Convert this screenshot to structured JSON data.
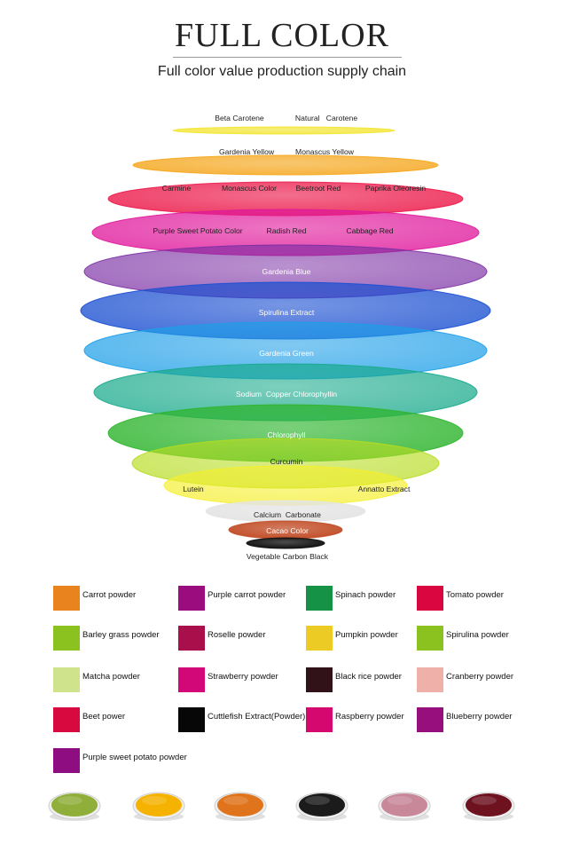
{
  "header": {
    "title": "FULL COLOR",
    "subtitle": "Full color value production supply chain"
  },
  "globe": {
    "bands": [
      {
        "name": "yellow-top",
        "color": "#f3e530",
        "labels": [
          "Beta Carotene",
          "Natural   Carotene"
        ]
      },
      {
        "name": "orange",
        "color": "#f5a71e",
        "labels": [
          "Gardenia Yellow",
          "Monascus Yellow"
        ]
      },
      {
        "name": "red",
        "color": "#ec1b4c",
        "labels": [
          "Carmine",
          "Monascus Color",
          "Beetroot Red",
          "Paprika Oleoresin"
        ]
      },
      {
        "name": "magenta",
        "color": "#e0189b",
        "labels": [
          "Purple Sweet Potato Color",
          "Radish Red",
          "Cabbage Red"
        ]
      },
      {
        "name": "purple",
        "color": "#7a2ea3",
        "labels": [
          "Gardenia Blue"
        ]
      },
      {
        "name": "blue",
        "color": "#1a4fd1",
        "labels": [
          "Spirulina Extract"
        ]
      },
      {
        "name": "sky",
        "color": "#1e9fe8",
        "labels": [
          "Gardenia Green"
        ]
      },
      {
        "name": "teal",
        "color": "#16a98a",
        "labels": [
          "Sodium  Copper Chlorophyllin"
        ]
      },
      {
        "name": "green",
        "color": "#2fb52f",
        "labels": [
          "Chlorophyll"
        ]
      },
      {
        "name": "lime",
        "color": "#b7dc1f",
        "labels": [
          "Curcumin"
        ]
      },
      {
        "name": "yellow-bottom",
        "color": "#f5ef2a",
        "labels": [
          "Lutein",
          "Annatto Extract"
        ]
      },
      {
        "name": "white",
        "color": "#e4e4e4",
        "labels": [
          "Calcium  Carbonate"
        ]
      },
      {
        "name": "brown",
        "color": "#c2502a",
        "labels": [
          "Cacao Color"
        ]
      },
      {
        "name": "black",
        "color": "#111111",
        "labels": [
          "Vegetable Carbon Black"
        ]
      }
    ]
  },
  "legend": [
    {
      "label": "Carrot powder",
      "color": "#e8831e"
    },
    {
      "label": "Purple carrot powder",
      "color": "#9b0d7e"
    },
    {
      "label": "Spinach powder",
      "color": "#169246"
    },
    {
      "label": "Tomato powder",
      "color": "#d9063f"
    },
    {
      "label": "Barley grass powder",
      "color": "#8cc21f"
    },
    {
      "label": "Roselle powder",
      "color": "#a80f4b"
    },
    {
      "label": "Pumpkin powder",
      "color": "#eccb24"
    },
    {
      "label": "Spirulina powder",
      "color": "#8cc21f"
    },
    {
      "label": "Matcha powder",
      "color": "#cfe38d"
    },
    {
      "label": "Strawberry powder",
      "color": "#d20778"
    },
    {
      "label": "Black rice powder",
      "color": "#301218"
    },
    {
      "label": "Cranberry powder",
      "color": "#efb0aa"
    },
    {
      "label": "Beet power",
      "color": "#d8093f"
    },
    {
      "label": "Cuttlefish Extract(Powder)",
      "color": "#070707"
    },
    {
      "label": "Raspberry powder",
      "color": "#d4086e"
    },
    {
      "label": "Blueberry powder",
      "color": "#960f7c"
    },
    {
      "label": "Purple sweet potato powder",
      "color": "#8e0d80"
    }
  ],
  "bowls": [
    {
      "name": "green-powder-bowl",
      "color": "#8fae3a"
    },
    {
      "name": "yellow-powder-bowl",
      "color": "#f5b200"
    },
    {
      "name": "orange-powder-bowl",
      "color": "#e0741c"
    },
    {
      "name": "black-powder-bowl",
      "color": "#1b1b1b"
    },
    {
      "name": "pink-powder-bowl",
      "color": "#c8889a"
    },
    {
      "name": "maroon-powder-bowl",
      "color": "#6e1220"
    }
  ]
}
